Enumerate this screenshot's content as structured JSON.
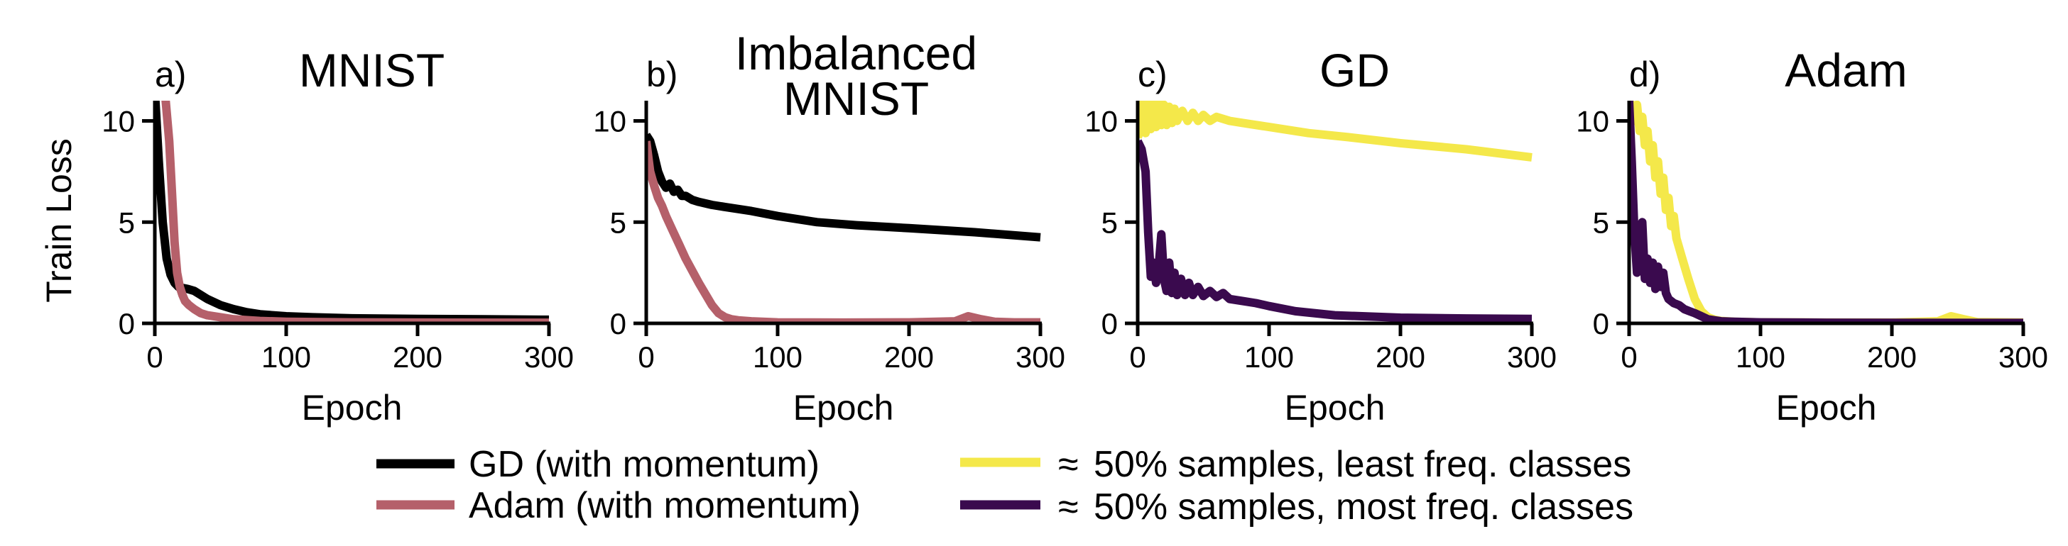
{
  "colors": {
    "gd": "#000000",
    "adam": "#b5606a",
    "least_freq": "#f4e84a",
    "most_freq": "#3a0a4e"
  },
  "legend": {
    "gd": "GD (with momentum)",
    "adam": "Adam (with momentum)",
    "least": "50% samples, least freq. classes",
    "most": "50% samples, most freq. classes",
    "approx_symbol": "≈"
  },
  "chart_data": [
    {
      "type": "line",
      "letter": "a)",
      "title": [
        "MNIST"
      ],
      "xlabel": "Epoch",
      "ylabel": "Train Loss",
      "xlim": [
        0,
        300
      ],
      "ylim": [
        0,
        11
      ],
      "xticks": [
        0,
        100,
        200,
        300
      ],
      "yticks": [
        0,
        5,
        10
      ],
      "series": [
        {
          "name": "GD (with momentum)",
          "color_key": "gd",
          "x": [
            0,
            3,
            6,
            9,
            12,
            15,
            18,
            21,
            25,
            30,
            35,
            40,
            50,
            60,
            70,
            80,
            100,
            120,
            150,
            200,
            250,
            300
          ],
          "y": [
            11.5,
            8.0,
            5.0,
            3.2,
            2.4,
            2.0,
            1.8,
            1.75,
            1.7,
            1.6,
            1.4,
            1.2,
            0.9,
            0.7,
            0.55,
            0.45,
            0.35,
            0.3,
            0.25,
            0.22,
            0.2,
            0.18
          ]
        },
        {
          "name": "Adam (with momentum)",
          "color_key": "adam",
          "x": [
            0,
            8,
            11,
            13,
            15,
            17,
            19,
            21,
            23,
            26,
            30,
            35,
            40,
            50,
            60,
            80,
            100,
            150,
            200,
            300
          ],
          "y": [
            11.5,
            11.2,
            9.0,
            6.5,
            4.0,
            2.5,
            1.8,
            1.4,
            1.1,
            0.9,
            0.7,
            0.5,
            0.4,
            0.3,
            0.2,
            0.12,
            0.08,
            0.05,
            0.04,
            0.03
          ]
        }
      ]
    },
    {
      "type": "line",
      "letter": "b)",
      "title": [
        "Imbalanced",
        "MNIST"
      ],
      "xlabel": "Epoch",
      "ylabel": "",
      "xlim": [
        0,
        300
      ],
      "ylim": [
        0,
        11
      ],
      "xticks": [
        0,
        100,
        200,
        300
      ],
      "yticks": [
        0,
        5,
        10
      ],
      "series": [
        {
          "name": "GD (with momentum)",
          "color_key": "gd",
          "x": [
            0,
            3,
            6,
            9,
            12,
            15,
            18,
            21,
            24,
            27,
            30,
            35,
            40,
            50,
            60,
            80,
            100,
            130,
            160,
            200,
            250,
            300
          ],
          "y": [
            9.3,
            9.0,
            8.3,
            7.5,
            7.0,
            6.7,
            6.9,
            6.5,
            6.6,
            6.3,
            6.3,
            6.1,
            6.0,
            5.85,
            5.75,
            5.55,
            5.3,
            5.0,
            4.85,
            4.7,
            4.5,
            4.25
          ]
        },
        {
          "name": "Adam (with momentum)",
          "color_key": "adam",
          "x": [
            0,
            3,
            6,
            9,
            12,
            15,
            20,
            25,
            30,
            40,
            50,
            55,
            60,
            65,
            70,
            80,
            100,
            150,
            200,
            235,
            245,
            255,
            265,
            280,
            300
          ],
          "y": [
            9.0,
            7.5,
            6.8,
            6.2,
            5.8,
            5.3,
            4.6,
            3.9,
            3.2,
            2.0,
            0.9,
            0.5,
            0.3,
            0.2,
            0.15,
            0.1,
            0.05,
            0.04,
            0.05,
            0.1,
            0.35,
            0.2,
            0.08,
            0.05,
            0.05
          ]
        }
      ]
    },
    {
      "type": "line",
      "letter": "c)",
      "title": [
        "GD"
      ],
      "xlabel": "Epoch",
      "ylabel": "",
      "xlim": [
        0,
        300
      ],
      "ylim": [
        0,
        11
      ],
      "xticks": [
        0,
        100,
        200,
        300
      ],
      "yticks": [
        0,
        5,
        10
      ],
      "series": [
        {
          "name": "≈50% samples, least freq. classes",
          "color_key": "least_freq",
          "x": [
            0,
            2,
            4,
            6,
            8,
            10,
            12,
            14,
            16,
            18,
            20,
            22,
            24,
            26,
            28,
            30,
            34,
            38,
            42,
            46,
            50,
            55,
            60,
            70,
            80,
            100,
            130,
            160,
            200,
            250,
            300
          ],
          "y": [
            9.2,
            9.5,
            11.0,
            9.4,
            11.0,
            9.6,
            11.0,
            9.7,
            10.9,
            9.8,
            10.8,
            9.8,
            10.7,
            9.9,
            10.6,
            10.0,
            10.5,
            10.0,
            10.4,
            10.0,
            10.3,
            10.0,
            10.2,
            10.0,
            9.9,
            9.7,
            9.4,
            9.2,
            8.9,
            8.6,
            8.2
          ]
        },
        {
          "name": "≈50% samples, most freq. classes",
          "color_key": "most_freq",
          "x": [
            0,
            3,
            6,
            8,
            10,
            12,
            14,
            16,
            18,
            20,
            22,
            24,
            26,
            28,
            30,
            33,
            36,
            39,
            42,
            46,
            50,
            55,
            60,
            65,
            70,
            80,
            90,
            100,
            120,
            150,
            200,
            250,
            300
          ],
          "y": [
            9.0,
            8.6,
            7.5,
            4.5,
            2.3,
            3.0,
            2.0,
            2.8,
            4.4,
            2.2,
            1.6,
            3.0,
            1.5,
            2.5,
            1.4,
            2.2,
            1.4,
            2.0,
            1.4,
            1.8,
            1.35,
            1.6,
            1.3,
            1.5,
            1.2,
            1.1,
            1.0,
            0.85,
            0.6,
            0.4,
            0.28,
            0.24,
            0.22
          ]
        }
      ]
    },
    {
      "type": "line",
      "letter": "d)",
      "title": [
        "Adam"
      ],
      "xlabel": "Epoch",
      "ylabel": "",
      "xlim": [
        0,
        300
      ],
      "ylim": [
        0,
        11
      ],
      "xticks": [
        0,
        100,
        200,
        300
      ],
      "yticks": [
        0,
        5,
        10
      ],
      "series": [
        {
          "name": "≈50% samples, least freq. classes",
          "color_key": "least_freq",
          "x": [
            0,
            2,
            4,
            6,
            8,
            10,
            12,
            14,
            16,
            18,
            20,
            22,
            24,
            26,
            28,
            30,
            32,
            34,
            36,
            40,
            45,
            50,
            55,
            60,
            65,
            70,
            80,
            100,
            150,
            200,
            235,
            245,
            255,
            265,
            300
          ],
          "y": [
            11.2,
            10.5,
            10.0,
            10.8,
            9.5,
            10.2,
            8.8,
            9.5,
            8.0,
            8.8,
            7.2,
            8.0,
            6.4,
            7.2,
            5.6,
            6.2,
            4.8,
            5.3,
            4.2,
            3.3,
            2.2,
            1.2,
            0.6,
            0.3,
            0.18,
            0.12,
            0.08,
            0.05,
            0.04,
            0.04,
            0.1,
            0.35,
            0.2,
            0.06,
            0.04
          ]
        },
        {
          "name": "≈50% samples, most freq. classes",
          "color_key": "most_freq",
          "x": [
            0,
            2,
            4,
            6,
            8,
            10,
            12,
            14,
            16,
            18,
            20,
            22,
            24,
            26,
            28,
            30,
            34,
            38,
            42,
            46,
            50,
            55,
            60,
            70,
            80,
            100,
            150,
            300
          ],
          "y": [
            11.0,
            8.0,
            4.5,
            2.5,
            3.5,
            5.0,
            2.2,
            3.2,
            2.0,
            3.0,
            1.7,
            2.8,
            1.8,
            2.5,
            1.5,
            1.2,
            1.0,
            0.9,
            0.7,
            0.6,
            0.5,
            0.35,
            0.2,
            0.1,
            0.08,
            0.05,
            0.03,
            0.02
          ]
        }
      ]
    }
  ]
}
